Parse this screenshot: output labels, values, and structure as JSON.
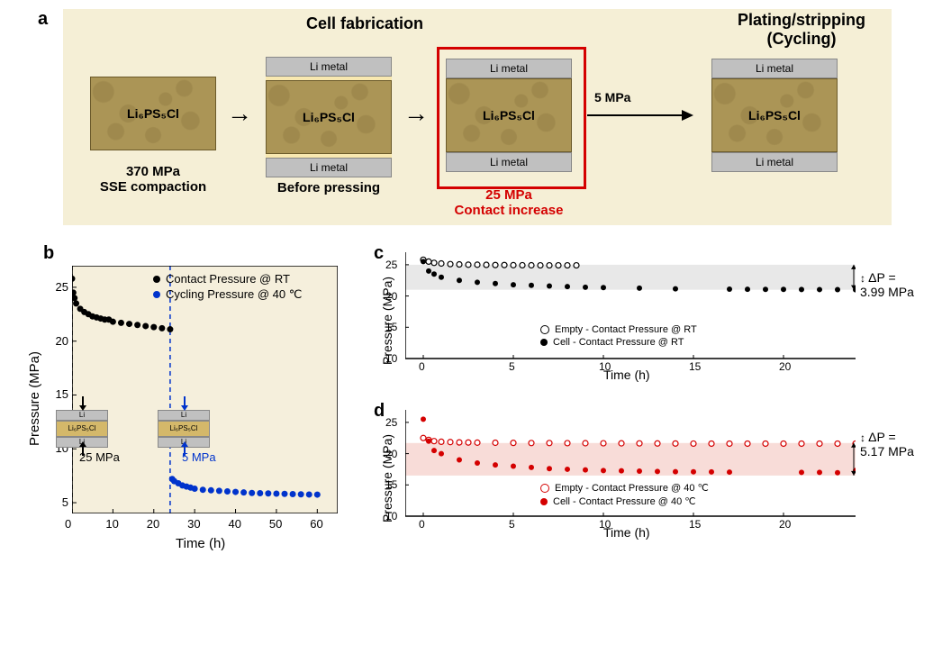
{
  "panel_a": {
    "label": "a",
    "title_fab": "Cell fabrication",
    "title_cycle": "Plating/stripping\n(Cycling)",
    "li_metal": "Li metal",
    "electrolyte": "Li₆PS₅Cl",
    "caption1_line1": "370 MPa",
    "caption1_line2": "SSE compaction",
    "caption2": "Before pressing",
    "caption3_line1": "25 MPa",
    "caption3_line2": "Contact increase",
    "caption3_color": "#d40000",
    "arrow_label": "5 MPa",
    "bg_color": "#f5efd6",
    "li_color": "#c0c0c0",
    "electrolyte_color": "#ab9556",
    "red_box_color": "#d40000"
  },
  "panel_b": {
    "label": "b",
    "ylabel": "Pressure (MPa)",
    "xlabel": "Time (h)",
    "xlim": [
      0,
      65
    ],
    "xtick_step": 10,
    "ylim": [
      4,
      27
    ],
    "ytick_step": 5,
    "bg_color": "#f5efdc",
    "legend": [
      {
        "marker": "filled",
        "color": "#000000",
        "label": "Contact Pressure @ RT"
      },
      {
        "marker": "filled",
        "color": "#0033cc",
        "label": "Cycling Pressure @ 40 ℃"
      }
    ],
    "series_rt": {
      "color": "#000000",
      "x": [
        0,
        0.3,
        0.6,
        1,
        2,
        3,
        4,
        5,
        6,
        7,
        8,
        9,
        10,
        12,
        14,
        16,
        18,
        20,
        22,
        24
      ],
      "y": [
        25.8,
        24.5,
        24,
        23.5,
        23,
        22.7,
        22.5,
        22.3,
        22.2,
        22.1,
        22,
        22,
        21.8,
        21.7,
        21.6,
        21.5,
        21.4,
        21.3,
        21.2,
        21.1
      ]
    },
    "series_40": {
      "color": "#0033cc",
      "x": [
        24.5,
        25,
        26,
        27,
        28,
        29,
        30,
        32,
        34,
        36,
        38,
        40,
        42,
        44,
        46,
        48,
        50,
        52,
        54,
        56,
        58,
        60
      ],
      "y": [
        7.2,
        7,
        6.8,
        6.6,
        6.5,
        6.4,
        6.3,
        6.2,
        6.15,
        6.1,
        6.05,
        6.0,
        5.95,
        5.9,
        5.88,
        5.86,
        5.84,
        5.82,
        5.8,
        5.78,
        5.76,
        5.75
      ]
    },
    "vline1": {
      "x": 0,
      "color": "#000000"
    },
    "vline2": {
      "x": 24,
      "color": "#0033cc"
    },
    "anno1": "25 MPa",
    "anno2": "5 MPa",
    "anno2_color": "#0033cc",
    "mini_el": "Li₆PS₅Cl",
    "mini_li": "Li"
  },
  "panel_c": {
    "label": "c",
    "ylabel": "Pressure (MPa)",
    "xlabel": "Time (h)",
    "xlim": [
      -1,
      24
    ],
    "xtick_step": 5,
    "ylim": [
      10,
      27
    ],
    "ytick_step": 5,
    "band_color": "#e8e8e8",
    "band_ymin": 21,
    "band_ymax": 25,
    "dp_label": "ΔP = 3.99 MPa",
    "legend": [
      {
        "marker": "open",
        "color": "#000000",
        "label": "Empty - Contact Pressure @ RT"
      },
      {
        "marker": "filled",
        "color": "#000000",
        "label": "Cell - Contact Pressure @ RT"
      }
    ],
    "series_empty": {
      "x": [
        0,
        0.3,
        0.6,
        1,
        1.5,
        2,
        2.5,
        3,
        3.5,
        4,
        4.5,
        5,
        5.5,
        6,
        6.5,
        7,
        7.5,
        8,
        8.5
      ],
      "y": [
        25.8,
        25.5,
        25.3,
        25.2,
        25.1,
        25.05,
        25,
        25,
        24.98,
        24.95,
        24.95,
        24.93,
        24.92,
        24.91,
        24.9,
        24.9,
        24.9,
        24.9,
        24.9
      ]
    },
    "series_cell": {
      "x": [
        0,
        0.3,
        0.6,
        1,
        2,
        3,
        4,
        5,
        6,
        7,
        8,
        9,
        10,
        12,
        14,
        17,
        18,
        19,
        20,
        21,
        22,
        23,
        24
      ],
      "y": [
        25.5,
        24,
        23.5,
        23,
        22.5,
        22.2,
        22,
        21.8,
        21.7,
        21.6,
        21.5,
        21.4,
        21.35,
        21.25,
        21.15,
        21.1,
        21.08,
        21.06,
        21.05,
        21.04,
        21.03,
        21.02,
        21
      ]
    }
  },
  "panel_d": {
    "label": "d",
    "ylabel": "Pressure (MPa)",
    "xlabel": "Time (h)",
    "xlim": [
      -1,
      24
    ],
    "xtick_step": 5,
    "ylim": [
      10,
      27
    ],
    "ytick_step": 5,
    "band_color": "#f8dcd8",
    "band_ymin": 16.5,
    "band_ymax": 21.7,
    "dp_label": "ΔP = 5.17 MPa",
    "series_color": "#d40000",
    "legend": [
      {
        "marker": "open",
        "color": "#d40000",
        "label": "Empty - Contact Pressure @ 40 ℃"
      },
      {
        "marker": "filled",
        "color": "#d40000",
        "label": "Cell - Contact Pressure @ 40 ℃"
      }
    ],
    "series_empty": {
      "x": [
        0,
        0.3,
        0.6,
        1,
        1.5,
        2,
        2.5,
        3,
        4,
        5,
        6,
        7,
        8,
        9,
        10,
        11,
        12,
        13,
        14,
        15,
        16,
        17,
        18,
        19,
        20,
        21,
        22,
        23,
        24
      ],
      "y": [
        22.5,
        22.2,
        22,
        21.9,
        21.85,
        21.8,
        21.78,
        21.76,
        21.74,
        21.72,
        21.7,
        21.7,
        21.68,
        21.67,
        21.66,
        21.65,
        21.64,
        21.63,
        21.62,
        21.61,
        21.6,
        21.6,
        21.6,
        21.6,
        21.6,
        21.6,
        21.6,
        21.6,
        21.6
      ]
    },
    "series_cell": {
      "x": [
        0,
        0.3,
        0.6,
        1,
        2,
        3,
        4,
        5,
        6,
        7,
        8,
        9,
        10,
        11,
        12,
        13,
        14,
        15,
        16,
        17,
        21,
        22,
        23,
        24
      ],
      "y": [
        25.5,
        22,
        20.5,
        20,
        19,
        18.5,
        18.2,
        18,
        17.8,
        17.6,
        17.5,
        17.4,
        17.3,
        17.25,
        17.2,
        17.15,
        17.12,
        17.1,
        17.08,
        17.05,
        17.0,
        17,
        16.95,
        17.3
      ]
    }
  },
  "style": {
    "label_fontsize": 20,
    "axis_fontsize": 15,
    "tick_fontsize": 13,
    "legend_fontsize": 13,
    "marker_size": 4
  }
}
